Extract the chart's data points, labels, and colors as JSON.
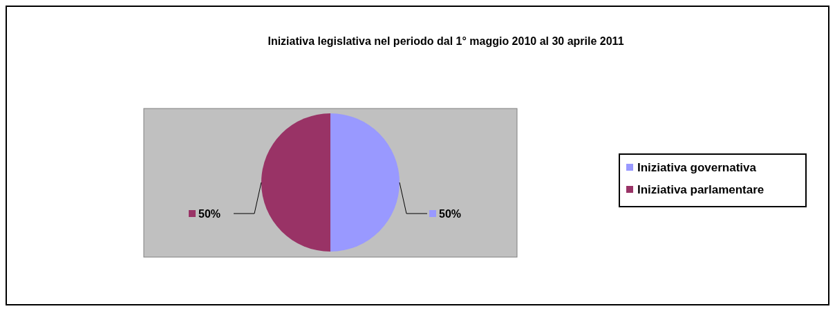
{
  "chart_data": {
    "type": "pie",
    "title": "Iniziativa legislativa nel periodo dal 1° maggio 2010 al 30 aprile 2011",
    "categories": [
      "Iniziativa governativa",
      "Iniziativa parlamentare"
    ],
    "values": [
      50,
      50
    ],
    "colors": [
      "#9999ff",
      "#993366"
    ],
    "value_labels": [
      "50%",
      "50%"
    ],
    "legend": "right"
  }
}
